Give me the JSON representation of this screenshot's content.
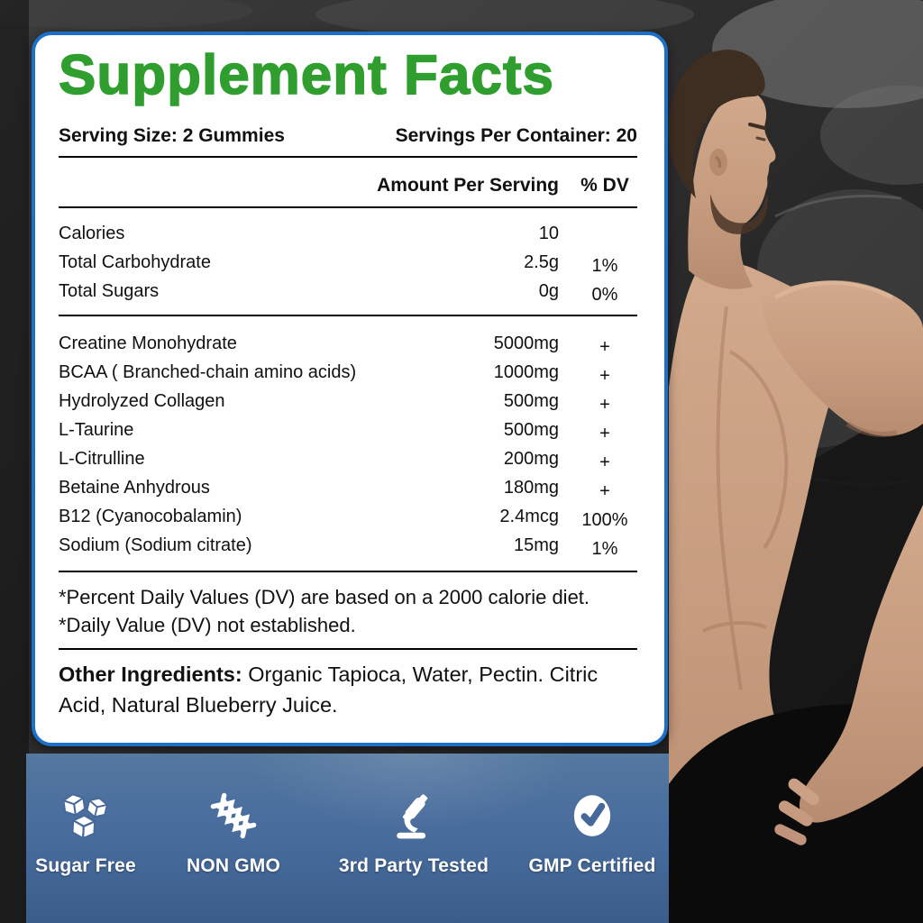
{
  "panel": {
    "title": "Supplement Facts",
    "serving_size": "Serving Size: 2 Gummies",
    "servings_per_container": "Servings Per Container: 20",
    "amount_header": "Amount Per Serving",
    "dv_header": "% DV",
    "groups": [
      {
        "rows": [
          {
            "name": "Calories",
            "amount": "10",
            "dv": ""
          },
          {
            "name": "Total Carbohydrate",
            "amount": "2.5g",
            "dv": "1%"
          },
          {
            "name": "Total Sugars",
            "amount": "0g",
            "dv": "0%"
          }
        ]
      },
      {
        "rows": [
          {
            "name": "Creatine Monohydrate",
            "amount": "5000mg",
            "dv": "+"
          },
          {
            "name": "BCAA ( Branched-chain amino acids)",
            "amount": "1000mg",
            "dv": "+"
          },
          {
            "name": "Hydrolyzed Collagen",
            "amount": "500mg",
            "dv": "+"
          },
          {
            "name": "L-Taurine",
            "amount": "500mg",
            "dv": "+"
          },
          {
            "name": "L-Citrulline",
            "amount": "200mg",
            "dv": "+"
          },
          {
            "name": "Betaine Anhydrous",
            "amount": "180mg",
            "dv": "+"
          },
          {
            "name": "B12 (Cyanocobalamin)",
            "amount": "2.4mcg",
            "dv": "100%"
          },
          {
            "name": "Sodium (Sodium citrate)",
            "amount": "15mg",
            "dv": "1%"
          }
        ]
      }
    ],
    "footnotes": [
      "*Percent Daily Values (DV) are based on a 2000 calorie diet.",
      "*Daily Value (DV) not established."
    ],
    "other_ingredients_label": "Other Ingredients:",
    "other_ingredients_text": " Organic Tapioca, Water, Pectin. Citric Acid, Natural Blueberry Juice."
  },
  "badges": [
    {
      "icon": "sugar-cubes-icon",
      "label": "Sugar Free"
    },
    {
      "icon": "dna-icon",
      "label": "NON GMO"
    },
    {
      "icon": "microscope-icon",
      "label": "3rd Party Tested"
    },
    {
      "icon": "check-badge-icon",
      "label": "GMP Certified"
    }
  ],
  "colors": {
    "title_green": "#2f9e2f",
    "panel_border": "#1c70c8",
    "label_text": "#111111",
    "strip_blue_top": "#54789f",
    "strip_blue_bottom": "#3a5c8a",
    "badge_icon_white": "#ffffff"
  }
}
